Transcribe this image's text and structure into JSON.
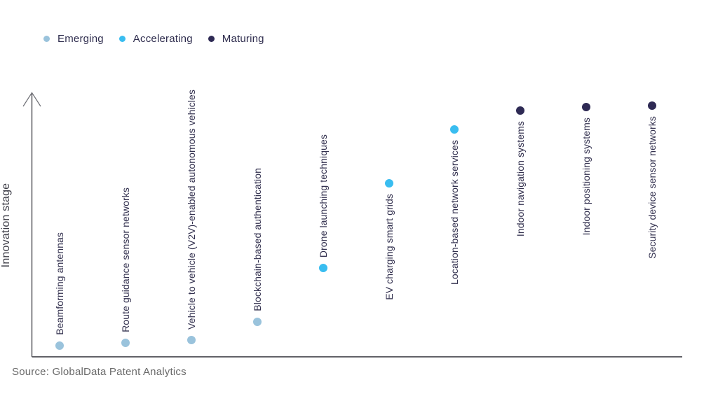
{
  "legend": {
    "items": [
      {
        "label": "Emerging",
        "color": "#9ac3dc"
      },
      {
        "label": "Accelerating",
        "color": "#39bdf0"
      },
      {
        "label": "Maturing",
        "color": "#2e2a54"
      }
    ]
  },
  "y_axis_label": "Innovation stage",
  "source": "Source: GlobalData Patent Analytics",
  "chart_data": {
    "type": "scatter",
    "title": "",
    "xlabel": "",
    "ylabel": "Innovation stage",
    "ylim": [
      0,
      100
    ],
    "grid": false,
    "legend_position": "top-left",
    "axis_note": "y axis unlabeled; stage values estimated 0-100 from dot heights",
    "series_colors": {
      "Emerging": "#9ac3dc",
      "Accelerating": "#39bdf0",
      "Maturing": "#2e2a54"
    },
    "points": [
      {
        "label": "Beamforming antennas",
        "stage": 4,
        "series": "Emerging",
        "label_side": "above"
      },
      {
        "label": "Route guidance sensor networks",
        "stage": 5,
        "series": "Emerging",
        "label_side": "above"
      },
      {
        "label": "Vehicle to vehicle (V2V)-enabled autonomous vehicles",
        "stage": 6,
        "series": "Emerging",
        "label_side": "above"
      },
      {
        "label": "Blockchain-based authentication",
        "stage": 13,
        "series": "Emerging",
        "label_side": "above"
      },
      {
        "label": "Drone launching techniques",
        "stage": 33.5,
        "series": "Accelerating",
        "label_side": "above"
      },
      {
        "label": "EV charging smart grids",
        "stage": 65.5,
        "series": "Accelerating",
        "label_side": "below"
      },
      {
        "label": "Location-based network services",
        "stage": 86,
        "series": "Accelerating",
        "label_side": "below"
      },
      {
        "label": "Indoor navigation systems",
        "stage": 93,
        "series": "Maturing",
        "label_side": "below"
      },
      {
        "label": "Indoor positioning systems",
        "stage": 94.5,
        "series": "Maturing",
        "label_side": "below"
      },
      {
        "label": "Security device sensor networks",
        "stage": 95,
        "series": "Maturing",
        "label_side": "below"
      }
    ]
  }
}
